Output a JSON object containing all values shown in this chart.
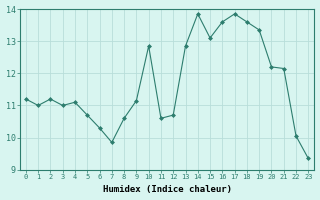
{
  "x": [
    0,
    1,
    2,
    3,
    4,
    5,
    6,
    7,
    8,
    9,
    10,
    11,
    12,
    13,
    14,
    15,
    16,
    17,
    18,
    19,
    20,
    21,
    22,
    23
  ],
  "y": [
    11.2,
    11.0,
    11.2,
    11.0,
    11.1,
    10.7,
    10.3,
    9.85,
    10.6,
    11.15,
    12.85,
    10.6,
    10.7,
    12.85,
    13.85,
    13.1,
    13.6,
    13.85,
    13.6,
    13.35,
    12.2,
    12.15,
    10.05,
    9.35
  ],
  "xlabel": "Humidex (Indice chaleur)",
  "xlim": [
    -0.5,
    23.5
  ],
  "ylim": [
    9,
    14
  ],
  "yticks": [
    9,
    10,
    11,
    12,
    13,
    14
  ],
  "xticks": [
    0,
    1,
    2,
    3,
    4,
    5,
    6,
    7,
    8,
    9,
    10,
    11,
    12,
    13,
    14,
    15,
    16,
    17,
    18,
    19,
    20,
    21,
    22,
    23
  ],
  "line_color": "#2d7d6e",
  "marker": "D",
  "marker_size": 2.0,
  "bg_color": "#d8f5f0",
  "grid_color": "#b8deda",
  "tick_color": "#2d7d6e",
  "spine_color": "#2d7d6e",
  "xlabel_color": "#000000",
  "xlabel_fontsize": 6.5,
  "xlabel_fontfamily": "monospace",
  "xlabel_fontweight": "bold",
  "xtick_fontsize": 5.0,
  "ytick_fontsize": 6.0,
  "line_width": 0.8
}
